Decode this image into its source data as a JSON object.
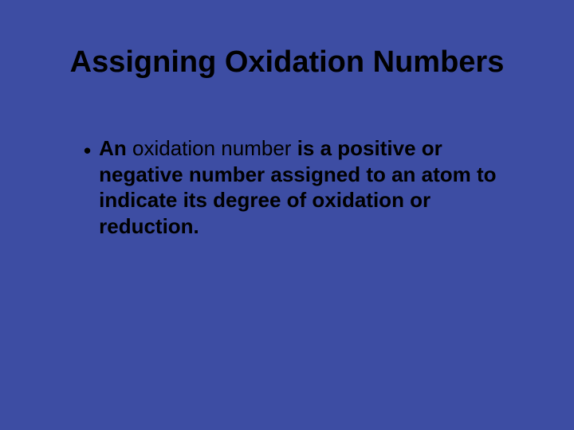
{
  "slide": {
    "background_color": "#3d4da3",
    "text_color": "#000000",
    "title": {
      "text": "Assigning Oxidation Numbers",
      "font_size": 38,
      "font_weight": "bold"
    },
    "bullet": {
      "marker": "•",
      "prefix": "An ",
      "term": "oxidation number",
      "suffix": " is a positive or negative number assigned to an atom to indicate its degree of oxidation or reduction.",
      "font_size": 26
    }
  }
}
